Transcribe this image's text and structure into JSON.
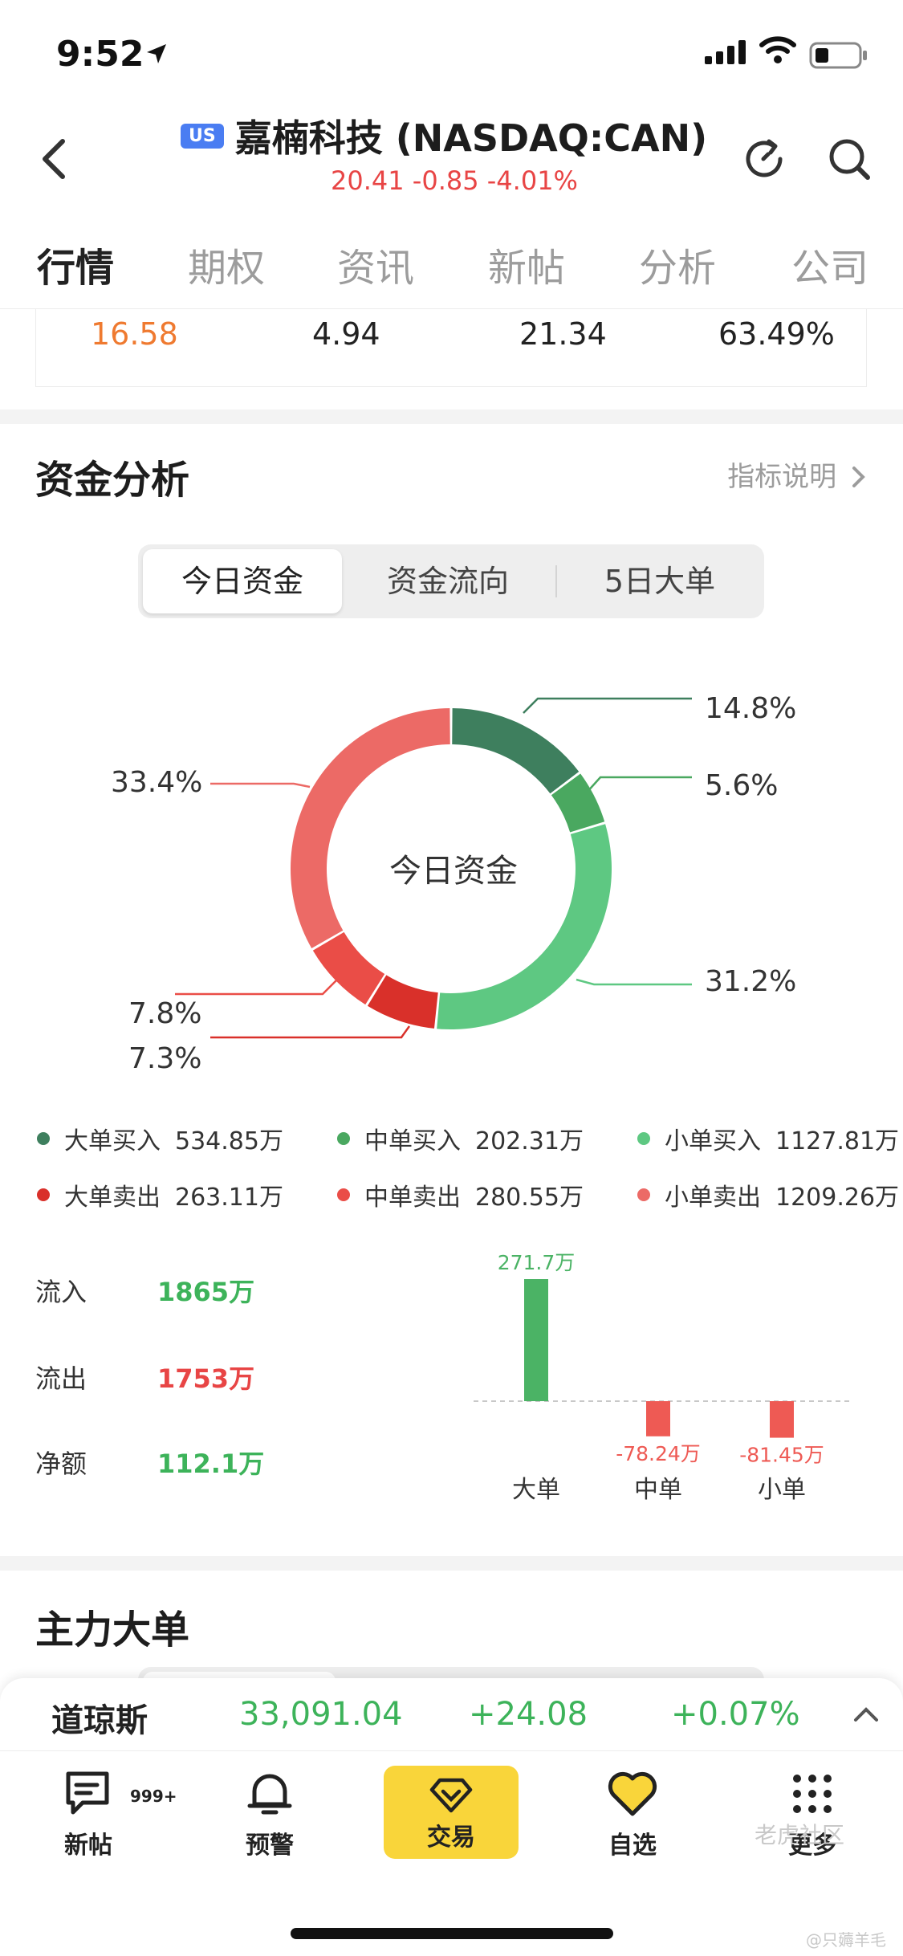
{
  "status_bar": {
    "time": "9:52"
  },
  "header": {
    "badge": "US",
    "title": "嘉楠科技 (NASDAQ:CAN)",
    "quote": "20.41 -0.85 -4.01%"
  },
  "tabs": [
    "行情",
    "期权",
    "资讯",
    "新帖",
    "分析",
    "公司"
  ],
  "top_numbers": [
    "16.58",
    "4.94",
    "21.34",
    "63.49%"
  ],
  "fund_analysis": {
    "title": "资金分析",
    "link": "指标说明",
    "segments": [
      "今日资金",
      "资金流向",
      "5日大单"
    ]
  },
  "chart_data": [
    {
      "type": "pie",
      "title": "今日资金",
      "slices": [
        {
          "label": "大单买入",
          "value": 14.8,
          "display": "14.8%",
          "color": "#3e7f5e"
        },
        {
          "label": "中单买入",
          "value": 5.6,
          "display": "5.6%",
          "color": "#4aa860"
        },
        {
          "label": "小单买入",
          "value": 31.2,
          "display": "31.2%",
          "color": "#5ec882"
        },
        {
          "label": "大单卖出",
          "value": 7.3,
          "display": "7.3%",
          "color": "#d9302a"
        },
        {
          "label": "中单卖出",
          "value": 7.8,
          "display": "7.8%",
          "color": "#ea4d47"
        },
        {
          "label": "小单卖出",
          "value": 33.4,
          "display": "33.4%",
          "color": "#ec6a66"
        }
      ]
    },
    {
      "type": "bar",
      "categories": [
        "大单",
        "中单",
        "小单"
      ],
      "values": [
        271.7,
        -78.24,
        -81.45
      ],
      "value_labels": [
        "271.7万",
        "-78.24万",
        "-81.45万"
      ],
      "colors": [
        "#4bb365",
        "#ee5a54",
        "#ee5a54"
      ]
    }
  ],
  "legend": [
    {
      "label": "大单买入",
      "value": "534.85万",
      "color": "#3e7f5e"
    },
    {
      "label": "中单买入",
      "value": "202.31万",
      "color": "#4aa860"
    },
    {
      "label": "小单买入",
      "value": "1127.81万",
      "color": "#5ec882"
    },
    {
      "label": "大单卖出",
      "value": "263.11万",
      "color": "#d9302a"
    },
    {
      "label": "中单卖出",
      "value": "280.55万",
      "color": "#ea4d47"
    },
    {
      "label": "小单卖出",
      "value": "1209.26万",
      "color": "#ec6a66"
    }
  ],
  "flows": {
    "inflow_label": "流入",
    "inflow": "1865万",
    "outflow_label": "流出",
    "outflow": "1753万",
    "net_label": "净额",
    "net": "112.1万"
  },
  "main_orders": {
    "title": "主力大单"
  },
  "ticker": {
    "name": "道琼斯",
    "value": "33,091.04",
    "change": "+24.08",
    "pct": "+0.07%"
  },
  "nav": {
    "posts": "新帖",
    "posts_badge": "999+",
    "alerts": "预警",
    "trade": "交易",
    "watchlist": "自选",
    "more": "更多"
  },
  "watermark": {
    "brand": "老虎社区",
    "user": "@只薅羊毛"
  },
  "colors": {
    "up": "#3db35a",
    "down": "#e84545",
    "accent": "#f9d53a",
    "orange": "#ef7a30"
  }
}
